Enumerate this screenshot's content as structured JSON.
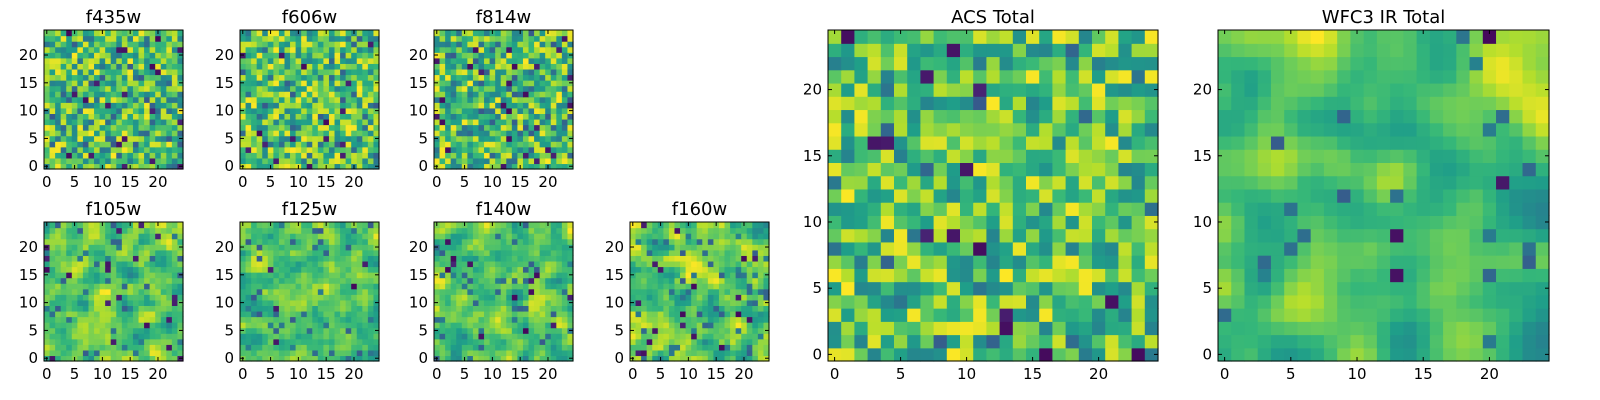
{
  "chart_data": [
    {
      "type": "heatmap",
      "title": "f435w",
      "xlim": [
        -0.5,
        24.5
      ],
      "ylim": [
        -0.5,
        24.5
      ],
      "xticks": [
        0,
        5,
        10,
        15,
        20
      ],
      "yticks": [
        0,
        5,
        10,
        15,
        20
      ],
      "grid": false,
      "origin": "lower",
      "colormap": "viridis",
      "rows": 25,
      "cols": 25,
      "seed": 11,
      "smooth": 0,
      "dark": 0.035
    },
    {
      "type": "heatmap",
      "title": "f606w",
      "xlim": [
        -0.5,
        24.5
      ],
      "ylim": [
        -0.5,
        24.5
      ],
      "xticks": [
        0,
        5,
        10,
        15,
        20
      ],
      "yticks": [
        0,
        5,
        10,
        15,
        20
      ],
      "grid": false,
      "origin": "lower",
      "colormap": "viridis",
      "rows": 25,
      "cols": 25,
      "seed": 23,
      "smooth": 0,
      "dark": 0.03
    },
    {
      "type": "heatmap",
      "title": "f814w",
      "xlim": [
        -0.5,
        24.5
      ],
      "ylim": [
        -0.5,
        24.5
      ],
      "xticks": [
        0,
        5,
        10,
        15,
        20
      ],
      "yticks": [
        0,
        5,
        10,
        15,
        20
      ],
      "grid": false,
      "origin": "lower",
      "colormap": "viridis",
      "rows": 25,
      "cols": 25,
      "seed": 37,
      "smooth": 0,
      "dark": 0.045
    },
    {
      "type": "heatmap",
      "title": "f105w",
      "xlim": [
        -0.5,
        24.5
      ],
      "ylim": [
        -0.5,
        24.5
      ],
      "xticks": [
        0,
        5,
        10,
        15,
        20
      ],
      "yticks": [
        0,
        5,
        10,
        15,
        20
      ],
      "grid": false,
      "origin": "lower",
      "colormap": "viridis",
      "rows": 25,
      "cols": 25,
      "seed": 41,
      "smooth": 1,
      "dark": 0.02
    },
    {
      "type": "heatmap",
      "title": "f125w",
      "xlim": [
        -0.5,
        24.5
      ],
      "ylim": [
        -0.5,
        24.5
      ],
      "xticks": [
        0,
        5,
        10,
        15,
        20
      ],
      "yticks": [
        0,
        5,
        10,
        15,
        20
      ],
      "grid": false,
      "origin": "lower",
      "colormap": "viridis",
      "rows": 25,
      "cols": 25,
      "seed": 53,
      "smooth": 1,
      "dark": 0.02
    },
    {
      "type": "heatmap",
      "title": "f140w",
      "xlim": [
        -0.5,
        24.5
      ],
      "ylim": [
        -0.5,
        24.5
      ],
      "xticks": [
        0,
        5,
        10,
        15,
        20
      ],
      "yticks": [
        0,
        5,
        10,
        15,
        20
      ],
      "grid": false,
      "origin": "lower",
      "colormap": "viridis",
      "rows": 25,
      "cols": 25,
      "seed": 67,
      "smooth": 1,
      "dark": 0.02
    },
    {
      "type": "heatmap",
      "title": "f160w",
      "xlim": [
        -0.5,
        24.5
      ],
      "ylim": [
        -0.5,
        24.5
      ],
      "xticks": [
        0,
        5,
        10,
        15,
        20
      ],
      "yticks": [
        0,
        5,
        10,
        15,
        20
      ],
      "grid": false,
      "origin": "lower",
      "colormap": "viridis",
      "rows": 25,
      "cols": 25,
      "seed": 79,
      "smooth": 1,
      "dark": 0.025
    },
    {
      "type": "heatmap",
      "title": "ACS Total",
      "xlim": [
        -0.5,
        24.5
      ],
      "ylim": [
        -0.5,
        24.5
      ],
      "xticks": [
        0,
        5,
        10,
        15,
        20
      ],
      "yticks": [
        0,
        5,
        10,
        15,
        20
      ],
      "grid": false,
      "origin": "lower",
      "colormap": "viridis",
      "rows": 25,
      "cols": 25,
      "seed": 97,
      "smooth": 0,
      "dark": 0.02
    },
    {
      "type": "heatmap",
      "title": "WFC3 IR Total",
      "xlim": [
        -0.5,
        24.5
      ],
      "ylim": [
        -0.5,
        24.5
      ],
      "xticks": [
        0,
        5,
        10,
        15,
        20
      ],
      "yticks": [
        0,
        5,
        10,
        15,
        20
      ],
      "grid": false,
      "origin": "lower",
      "colormap": "viridis",
      "rows": 25,
      "cols": 25,
      "seed": 113,
      "smooth": 2,
      "dark": 0.01
    }
  ]
}
